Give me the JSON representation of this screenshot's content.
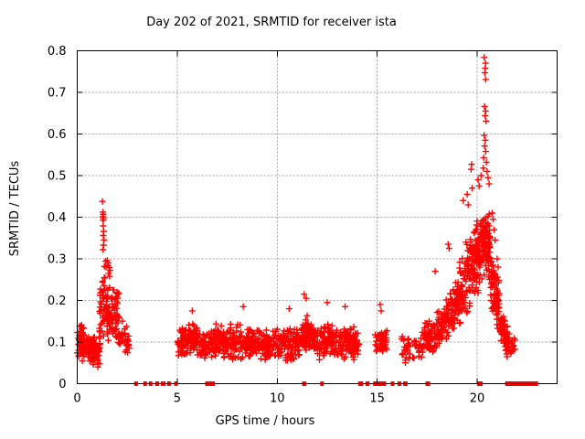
{
  "title": "Day 202 of 2021, SRMTID for receiver ista",
  "colors": {
    "marker": "#ff0000",
    "grid": "#a0a0a0",
    "axis": "#000000",
    "background": "#ffffff",
    "text": "#000000"
  },
  "chart_data": {
    "type": "scatter",
    "title": "Day 202 of 2021, SRMTID for receiver ista",
    "xlabel": "GPS time / hours",
    "ylabel": "SRMTID / TECUs",
    "xlim": [
      0,
      24
    ],
    "ylim": [
      0,
      0.8
    ],
    "xticks": [
      0,
      5,
      10,
      15,
      20
    ],
    "xtick_labels": [
      "0",
      "5",
      "10",
      "15",
      "20"
    ],
    "yticks": [
      0,
      0.1,
      0.2,
      0.3,
      0.4,
      0.5,
      0.6,
      0.7,
      0.8
    ],
    "ytick_labels": [
      "0",
      "0.1",
      "0.2",
      "0.3",
      "0.4",
      "0.5",
      "0.6",
      "0.7",
      "0.8"
    ],
    "grid": true,
    "legend": "none",
    "marker": "plus",
    "series_name": "SRMTID",
    "seed": 1234567,
    "clusters": [
      [
        0.0,
        0.45,
        60,
        0.095,
        0.09,
        0.045,
        0.055,
        0.165
      ],
      [
        0.05,
        0.32,
        12,
        0.13,
        0.13,
        0.03,
        0.1,
        0.158
      ],
      [
        0.45,
        1.15,
        90,
        0.085,
        0.075,
        0.042,
        0.038,
        0.14
      ],
      [
        1.1,
        1.45,
        45,
        0.16,
        0.22,
        0.09,
        0.07,
        0.34
      ],
      [
        1.45,
        2.1,
        90,
        0.17,
        0.16,
        0.07,
        0.08,
        0.285
      ],
      [
        2.05,
        2.6,
        35,
        0.12,
        0.1,
        0.045,
        0.06,
        0.185
      ],
      [
        5.0,
        5.55,
        50,
        0.095,
        0.1,
        0.04,
        0.05,
        0.165
      ],
      [
        5.55,
        6.0,
        60,
        0.105,
        0.105,
        0.045,
        0.05,
        0.175
      ],
      [
        6.0,
        6.45,
        40,
        0.09,
        0.09,
        0.035,
        0.05,
        0.15
      ],
      [
        6.45,
        7.6,
        110,
        0.1,
        0.1,
        0.045,
        0.045,
        0.175
      ],
      [
        7.6,
        9.0,
        130,
        0.1,
        0.1,
        0.045,
        0.045,
        0.18
      ],
      [
        9.0,
        10.2,
        110,
        0.095,
        0.095,
        0.042,
        0.05,
        0.17
      ],
      [
        10.2,
        11.2,
        95,
        0.095,
        0.1,
        0.045,
        0.05,
        0.175
      ],
      [
        11.2,
        11.7,
        60,
        0.115,
        0.115,
        0.055,
        0.055,
        0.21
      ],
      [
        11.7,
        12.35,
        60,
        0.1,
        0.1,
        0.045,
        0.05,
        0.17
      ],
      [
        12.35,
        12.75,
        45,
        0.11,
        0.11,
        0.05,
        0.05,
        0.19
      ],
      [
        12.75,
        14.1,
        120,
        0.1,
        0.095,
        0.045,
        0.05,
        0.18
      ],
      [
        14.9,
        15.5,
        45,
        0.1,
        0.1,
        0.05,
        0.04,
        0.19
      ],
      [
        16.2,
        17.35,
        55,
        0.08,
        0.09,
        0.04,
        0.03,
        0.15
      ],
      [
        17.35,
        18.3,
        90,
        0.1,
        0.14,
        0.05,
        0.05,
        0.25
      ],
      [
        18.3,
        19.1,
        100,
        0.14,
        0.21,
        0.07,
        0.07,
        0.33
      ],
      [
        19.1,
        19.9,
        120,
        0.22,
        0.3,
        0.1,
        0.1,
        0.47
      ],
      [
        19.9,
        20.3,
        80,
        0.3,
        0.34,
        0.1,
        0.13,
        0.5
      ],
      [
        20.3,
        20.65,
        70,
        0.35,
        0.33,
        0.1,
        0.15,
        0.52
      ],
      [
        20.65,
        21.1,
        70,
        0.26,
        0.18,
        0.08,
        0.09,
        0.42
      ],
      [
        21.1,
        21.6,
        60,
        0.14,
        0.1,
        0.05,
        0.065,
        0.24
      ],
      [
        21.55,
        21.9,
        18,
        0.1,
        0.09,
        0.03,
        0.06,
        0.15
      ]
    ],
    "outliers": [
      [
        1.26,
        0.438
      ],
      [
        1.285,
        0.412
      ],
      [
        1.3,
        0.407
      ],
      [
        1.28,
        0.401
      ],
      [
        1.315,
        0.397
      ],
      [
        1.295,
        0.392
      ],
      [
        1.3,
        0.379
      ],
      [
        1.325,
        0.366
      ],
      [
        1.305,
        0.356
      ],
      [
        1.34,
        0.345
      ],
      [
        1.315,
        0.333
      ],
      [
        1.29,
        0.322
      ],
      [
        1.5,
        0.296
      ],
      [
        1.56,
        0.29
      ],
      [
        1.53,
        0.284
      ],
      [
        1.6,
        0.279
      ],
      [
        1.64,
        0.272
      ],
      [
        1.57,
        0.265
      ],
      [
        1.62,
        0.258
      ],
      [
        11.35,
        0.215
      ],
      [
        11.45,
        0.205
      ],
      [
        12.5,
        0.195
      ],
      [
        5.75,
        0.175
      ],
      [
        8.3,
        0.185
      ],
      [
        10.6,
        0.18
      ],
      [
        13.4,
        0.185
      ],
      [
        15.15,
        0.19
      ],
      [
        15.2,
        0.175
      ],
      [
        17.9,
        0.27
      ],
      [
        18.55,
        0.335
      ],
      [
        18.6,
        0.325
      ],
      [
        19.3,
        0.44
      ],
      [
        19.5,
        0.455
      ],
      [
        19.55,
        0.43
      ],
      [
        19.75,
        0.47
      ],
      [
        20.05,
        0.49
      ],
      [
        20.1,
        0.475
      ],
      [
        20.2,
        0.5
      ],
      [
        20.35,
        0.784
      ],
      [
        20.42,
        0.77
      ],
      [
        20.4,
        0.758
      ],
      [
        20.385,
        0.747
      ],
      [
        20.43,
        0.731
      ],
      [
        20.37,
        0.666
      ],
      [
        20.425,
        0.655
      ],
      [
        20.4,
        0.644
      ],
      [
        20.445,
        0.631
      ],
      [
        20.35,
        0.597
      ],
      [
        20.405,
        0.585
      ],
      [
        20.37,
        0.571
      ],
      [
        20.43,
        0.558
      ],
      [
        20.33,
        0.543
      ],
      [
        20.46,
        0.532
      ],
      [
        20.31,
        0.518
      ],
      [
        19.72,
        0.527
      ],
      [
        19.7,
        0.515
      ],
      [
        20.5,
        0.51
      ],
      [
        20.55,
        0.495
      ],
      [
        20.6,
        0.48
      ],
      [
        20.75,
        0.41
      ],
      [
        20.8,
        0.395
      ],
      [
        20.85,
        0.37
      ],
      [
        20.9,
        0.345
      ],
      [
        21.0,
        0.3
      ],
      [
        21.05,
        0.28
      ]
    ],
    "zero_segments": [
      [
        2.85,
        3.0
      ],
      [
        3.3,
        3.45
      ],
      [
        3.58,
        3.66
      ],
      [
        3.9,
        4.1
      ],
      [
        4.18,
        4.42
      ],
      [
        4.5,
        4.68
      ],
      [
        4.85,
        5.02
      ],
      [
        6.4,
        6.88
      ],
      [
        11.25,
        11.45
      ],
      [
        12.15,
        12.32
      ],
      [
        14.05,
        14.3
      ],
      [
        14.42,
        14.62
      ],
      [
        14.8,
        15.45
      ],
      [
        15.68,
        15.8
      ],
      [
        16.02,
        16.2
      ],
      [
        16.3,
        16.52
      ],
      [
        17.42,
        17.65
      ],
      [
        20.0,
        20.28
      ],
      [
        21.4,
        23.05
      ]
    ]
  }
}
